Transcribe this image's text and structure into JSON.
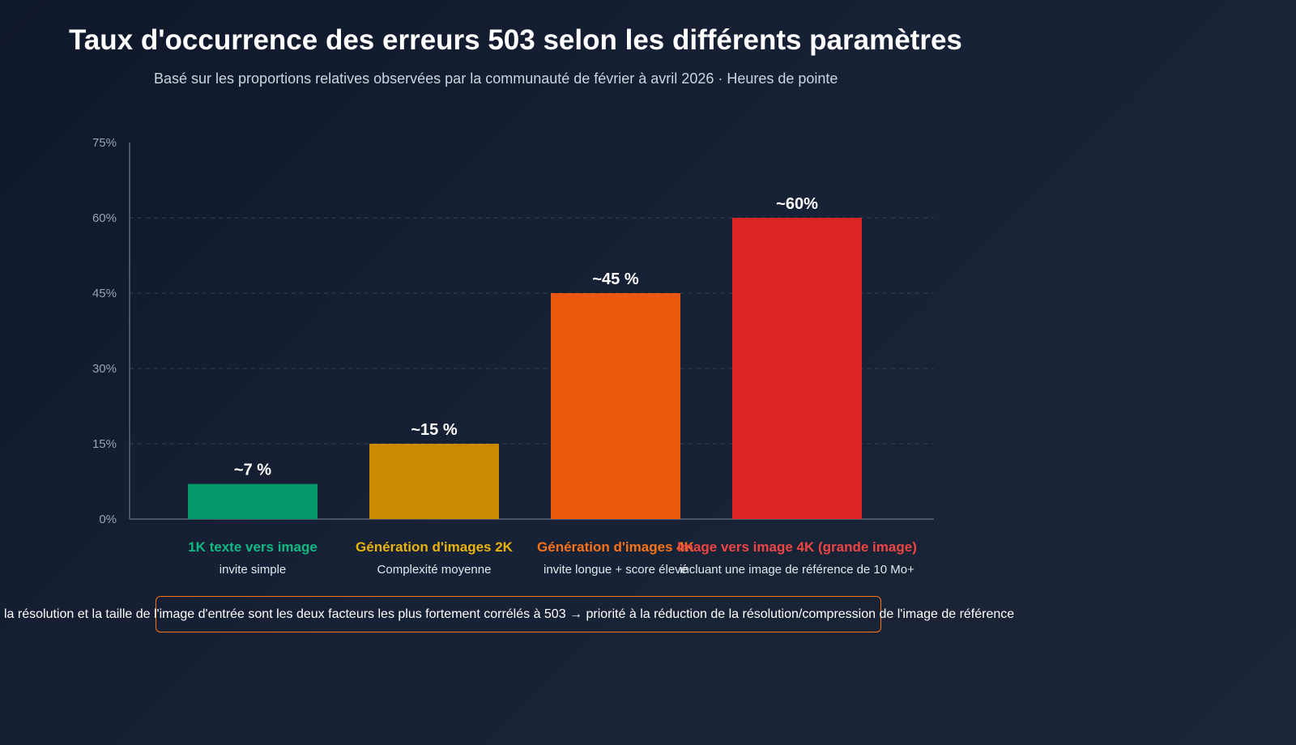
{
  "colors": {
    "background": "#0f172a",
    "axis": "#475569",
    "grid": "#334155",
    "note_border": "#f97316"
  },
  "chart_data": {
    "type": "bar",
    "title": "Taux d'occurrence des erreurs 503 selon les différents paramètres",
    "subtitle": "Basé sur les proportions relatives observées par la communauté de février à avril 2026 · Heures de pointe",
    "xlabel": "",
    "ylabel": "",
    "ylim": [
      0,
      75
    ],
    "yticks": [
      0,
      15,
      30,
      45,
      60,
      75
    ],
    "ytick_labels": [
      "0%",
      "15%",
      "30%",
      "45%",
      "60%",
      "75%"
    ],
    "grid": true,
    "categories": [
      "1K texte vers image",
      "Génération d'images 2K",
      "Génération d'images 4K",
      "Image vers image 4K (grande image)"
    ],
    "category_subtitles": [
      "invite simple",
      "Complexité moyenne",
      "invite longue + score élevé",
      "incluant une image de référence de 10 Mo+"
    ],
    "values": [
      7,
      15,
      45,
      60
    ],
    "data_labels": [
      "~7 %",
      "~15 %",
      "~45 %",
      "~60%"
    ],
    "bar_colors": [
      "#059669",
      "#ca8a04",
      "#ea580c",
      "#dc2626"
    ],
    "label_colors": [
      "#10b981",
      "#eab308",
      "#f97316",
      "#ef4444"
    ]
  },
  "note": {
    "text": "la résolution et la taille de l'image d'entrée sont les deux facteurs les plus fortement corrélés à 503 → priorité à la réduction de la résolution/compression de l'image de référence"
  }
}
